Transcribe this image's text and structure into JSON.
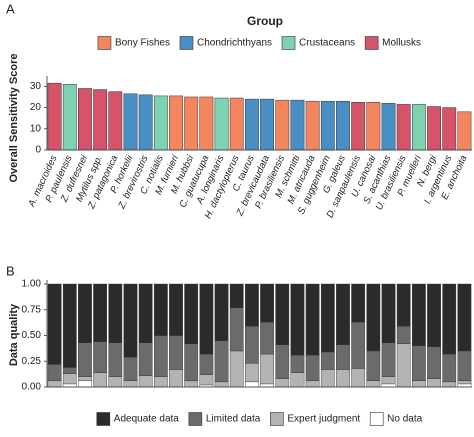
{
  "chart_data": [
    {
      "type": "bar",
      "panel": "A",
      "legend_title": "Group",
      "ylabel": "Overall Sensitivity Score",
      "categories": [
        "A. macroides",
        "P. paulensis",
        "Z. dufresnei",
        "Mytilus spp.",
        "Z. patagonica",
        "P. horkelii",
        "Z. brevirostris",
        "C. notialis",
        "M. furnieri",
        "M. hubbsi",
        "C. guatucupa",
        "A. longinaris",
        "H. dactylopterus",
        "C. taurus",
        "Z. brevicaudata",
        "P. brasiliensis",
        "M. schmitti",
        "M. atricauda",
        "S. guggenheim",
        "G. galeus",
        "D. sanpaulensis",
        "U. canosai",
        "S. acanthias",
        "U. brasiliensis",
        "P. muelleri",
        "N. bergi",
        "I. argentinus",
        "E. anchoita"
      ],
      "series": [
        {
          "name": "Bony Fishes",
          "color": "#f4865f",
          "values": [
            null,
            null,
            null,
            null,
            null,
            null,
            null,
            null,
            25.5,
            25,
            25,
            null,
            24.5,
            null,
            null,
            23.5,
            null,
            23,
            null,
            null,
            null,
            22.5,
            null,
            null,
            null,
            null,
            null,
            18
          ]
        },
        {
          "name": "Chondrichthyans",
          "color": "#4a8fc4",
          "values": [
            null,
            null,
            null,
            null,
            null,
            26.5,
            26,
            null,
            null,
            null,
            null,
            null,
            null,
            24,
            24,
            null,
            23.5,
            null,
            23,
            23,
            null,
            null,
            22,
            null,
            null,
            null,
            null,
            null
          ]
        },
        {
          "name": "Crustaceans",
          "color": "#7fd1b3",
          "values": [
            null,
            31,
            null,
            null,
            null,
            null,
            null,
            25.5,
            null,
            null,
            null,
            24.5,
            null,
            null,
            null,
            null,
            null,
            null,
            null,
            null,
            null,
            null,
            null,
            null,
            21.5,
            null,
            null,
            null
          ]
        },
        {
          "name": "Mollusks",
          "color": "#d6546a",
          "values": [
            31.5,
            null,
            29,
            28.5,
            27.5,
            null,
            null,
            null,
            null,
            null,
            null,
            null,
            null,
            null,
            null,
            null,
            null,
            null,
            null,
            null,
            22.5,
            null,
            null,
            21.5,
            null,
            20.5,
            20,
            null
          ]
        }
      ],
      "ylim": [
        0,
        33
      ],
      "yticks": [
        0,
        10,
        20,
        30
      ],
      "legend": "top"
    },
    {
      "type": "stacked_bar",
      "panel": "B",
      "ylabel": "Data quality",
      "series": [
        {
          "name": "Adequate data",
          "color": "#2b2b2b",
          "values": [
            0.78,
            0.81,
            0.57,
            0.56,
            0.57,
            0.71,
            0.57,
            0.5,
            0.5,
            0.58,
            0.68,
            0.55,
            0.23,
            0.41,
            0.37,
            0.59,
            0.69,
            0.69,
            0.66,
            0.59,
            0.37,
            0.65,
            0.57,
            0.41,
            0.6,
            0.61,
            0.68,
            0.65
          ]
        },
        {
          "name": "Limited data",
          "color": "#6b6b6b",
          "values": [
            0.16,
            0.06,
            0.33,
            0.3,
            0.33,
            0.23,
            0.32,
            0.4,
            0.33,
            0.36,
            0.2,
            0.4,
            0.42,
            0.36,
            0.31,
            0.33,
            0.17,
            0.25,
            0.17,
            0.24,
            0.45,
            0.29,
            0.33,
            0.17,
            0.34,
            0.31,
            0.27,
            0.29
          ]
        },
        {
          "name": "Expert judgment",
          "color": "#b3b3b3",
          "values": [
            0.06,
            0.1,
            0.04,
            0.14,
            0.1,
            0.06,
            0.11,
            0.1,
            0.17,
            0.06,
            0.1,
            0.05,
            0.35,
            0.18,
            0.29,
            0.08,
            0.14,
            0.06,
            0.17,
            0.17,
            0.18,
            0.06,
            0.07,
            0.42,
            0.06,
            0.08,
            0.05,
            0.03
          ]
        },
        {
          "name": "No data",
          "color": "#ffffff",
          "values": [
            0,
            0.03,
            0.06,
            0,
            0,
            0,
            0,
            0,
            0,
            0,
            0.02,
            0,
            0,
            0.05,
            0.03,
            0,
            0,
            0,
            0,
            0,
            0,
            0,
            0.03,
            0,
            0,
            0,
            0,
            0.03
          ]
        }
      ],
      "ylim": [
        0,
        1
      ],
      "yticks": [
        {
          "value": 0,
          "label": "0.00"
        },
        {
          "value": 0.25,
          "label": "0.25"
        },
        {
          "value": 0.5,
          "label": "0.50"
        },
        {
          "value": 0.75,
          "label": "0.75"
        },
        {
          "value": 1,
          "label": "1.00"
        }
      ],
      "legend": "bottom"
    }
  ]
}
